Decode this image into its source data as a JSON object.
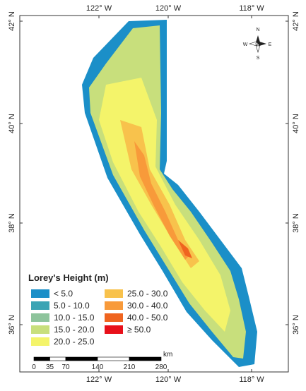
{
  "map": {
    "top_labels": [
      "122° W",
      "120° W",
      "118° W"
    ],
    "bottom_labels": [
      "122° W",
      "120° W",
      "118° W"
    ],
    "left_labels": [
      "42° N",
      "40° N",
      "38° N",
      "36° N"
    ],
    "right_labels": [
      "42° N",
      "40° N",
      "38° N",
      "36° N"
    ],
    "compass": {
      "n": "N",
      "s": "S",
      "e": "E",
      "w": "W"
    },
    "legend": {
      "title": "Lorey's Height (m)",
      "items": [
        {
          "label": "< 5.0",
          "color": "#1b8fc8"
        },
        {
          "label": "5.0 - 10.0",
          "color": "#3ba4b4"
        },
        {
          "label": "10.0 - 15.0",
          "color": "#8ec49c"
        },
        {
          "label": "15.0 - 20.0",
          "color": "#c8df7c"
        },
        {
          "label": "20.0 - 25.0",
          "color": "#f4f46a"
        },
        {
          "label": "25.0 - 30.0",
          "color": "#f8c24c"
        },
        {
          "label": "30.0 - 40.0",
          "color": "#f89a3a"
        },
        {
          "label": "40.0 - 50.0",
          "color": "#ef641f"
        },
        {
          "label": "≥ 50.0",
          "color": "#e8101a"
        }
      ]
    },
    "scale": {
      "unit": "km",
      "ticks": [
        0,
        35,
        70,
        140,
        210,
        280
      ]
    }
  }
}
